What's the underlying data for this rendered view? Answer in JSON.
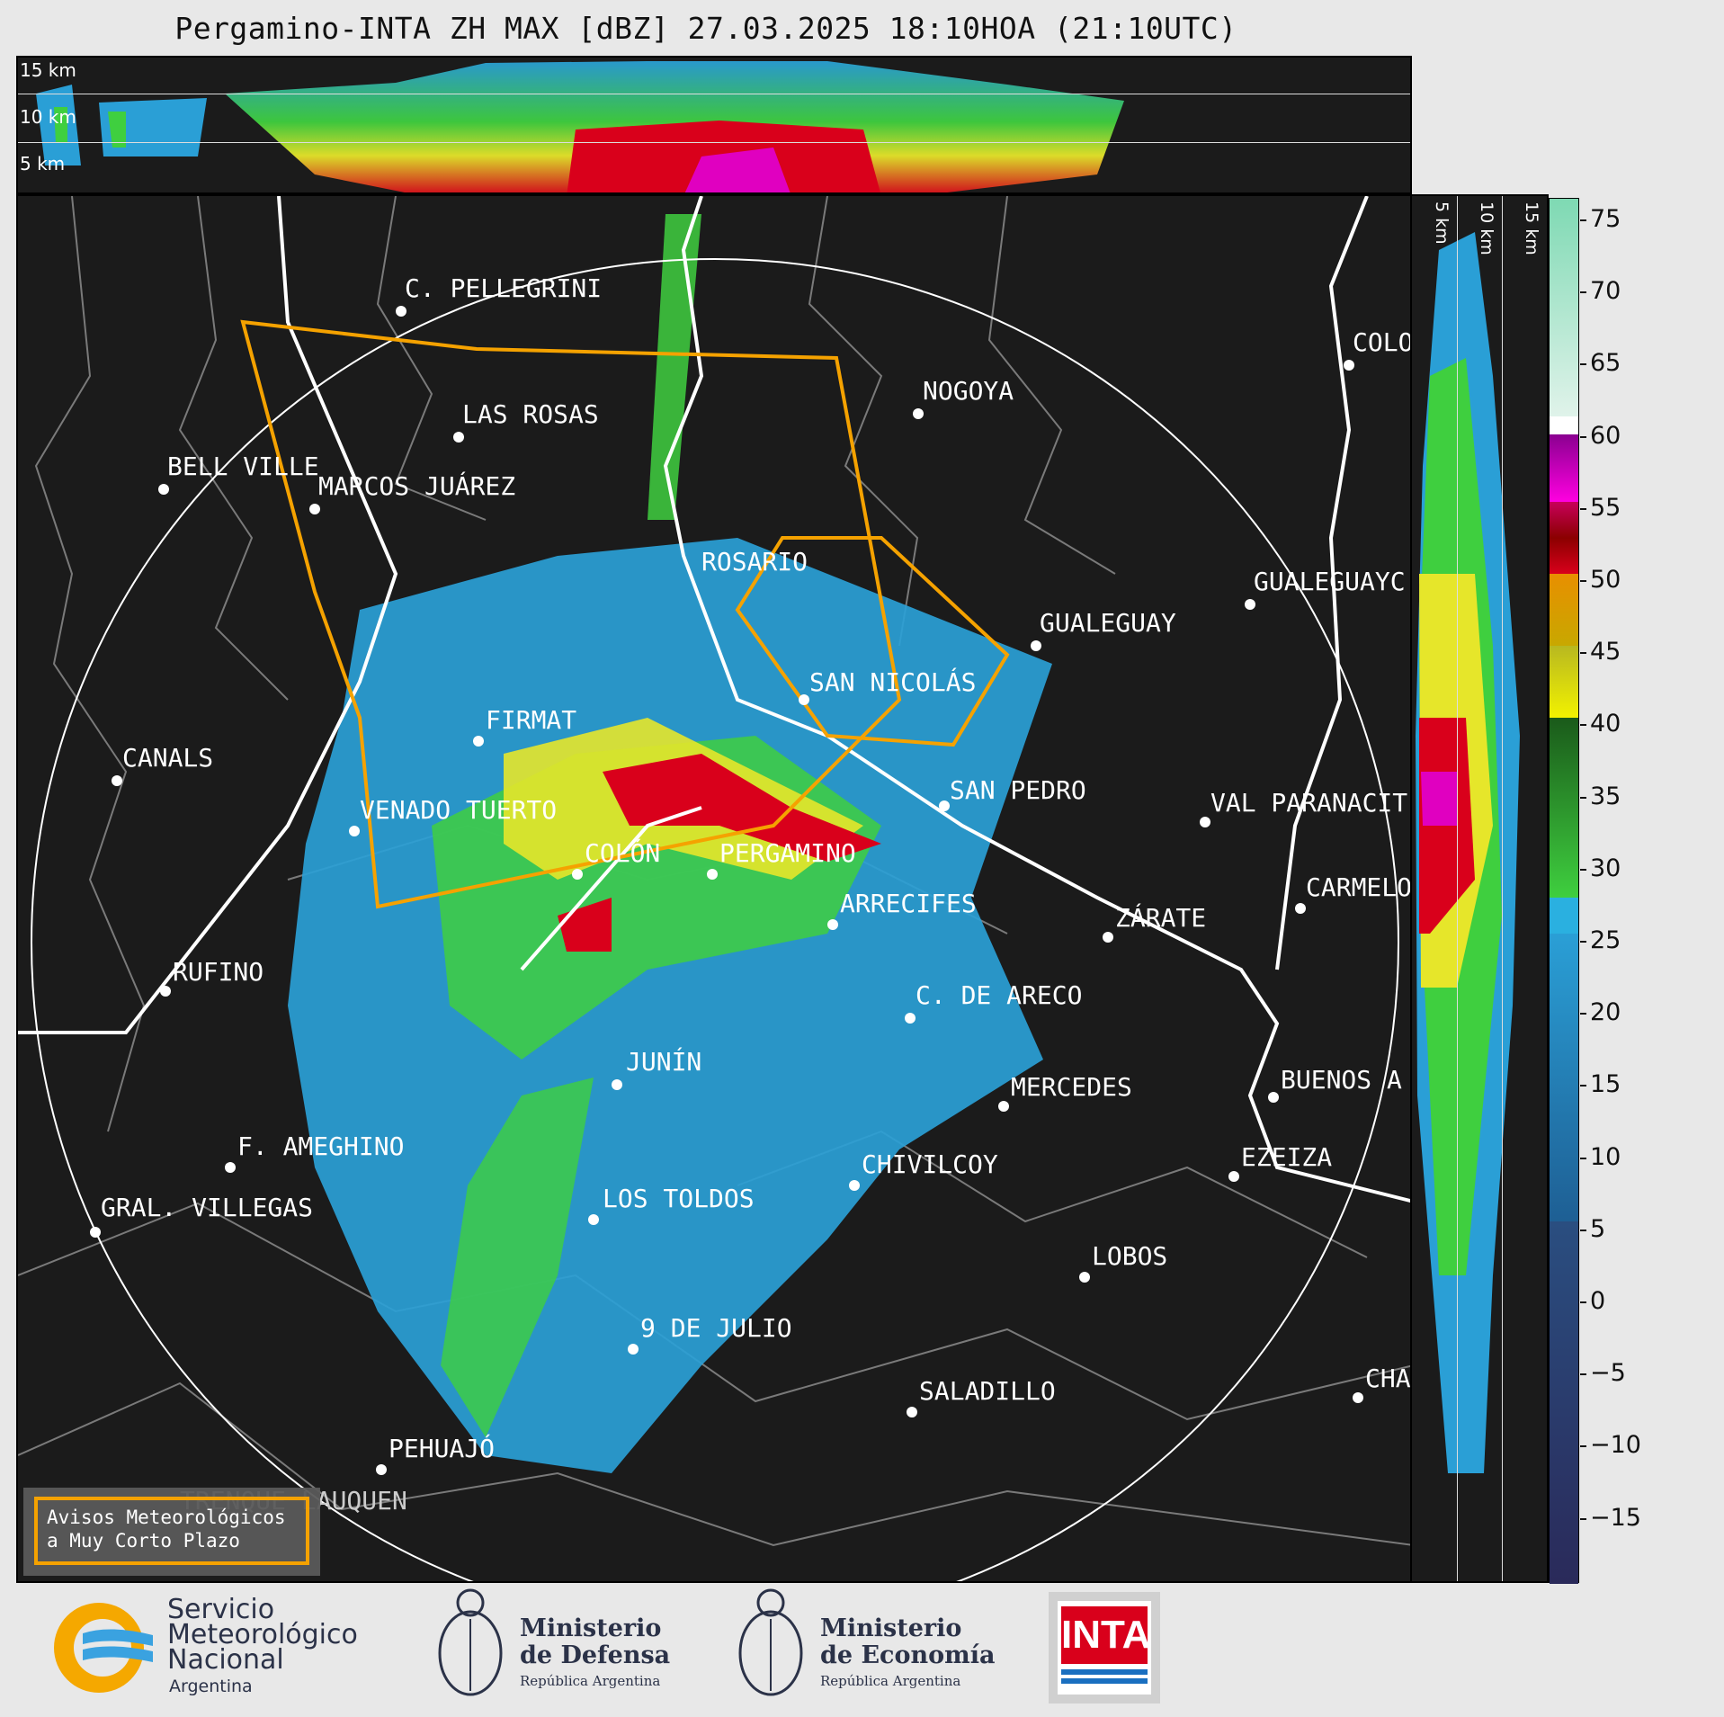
{
  "title": "Pergamino-INTA ZH MAX [dBZ] 27.03.2025 18:10HOA (21:10UTC)",
  "top_section": {
    "labels": [
      "15 km",
      "10 km",
      "5 km"
    ]
  },
  "side_section": {
    "labels": [
      "5 km",
      "10 km",
      "15 km"
    ]
  },
  "colorbar": {
    "ticks": [
      "75",
      "70",
      "65",
      "60",
      "55",
      "50",
      "45",
      "40",
      "35",
      "30",
      "25",
      "20",
      "15",
      "10",
      "5",
      "0",
      "−5",
      "−10",
      "−15"
    ]
  },
  "cities": [
    "C. PELLEGRINI",
    "NOGOYA",
    "LAS ROSAS",
    "BELL VILLE",
    "MARCOS JUÁREZ",
    "COLO",
    "ROSARIO",
    "GUALEGUAYC",
    "GUALEGUAY",
    "SAN NICOLÁS",
    "FIRMAT",
    "CANALS",
    "SAN PEDRO",
    "VENADO TUERTO",
    "VAL PARANACIT",
    "COLÓN",
    "PERGAMINO",
    "CARMELO",
    "ARRECIFES",
    "ZÁRATE",
    "RUFINO",
    "C. DE ARECO",
    "JUNÍN",
    "MERCEDES",
    "BUENOS A",
    "F. AMEGHINO",
    "EZEIZA",
    "CHIVILCOY",
    "GRAL. VILLEGAS",
    "LOS TOLDOS",
    "LOBOS",
    "9 DE JULIO",
    "CHA",
    "SALADILLO",
    "PEHUAJÓ",
    "TRENQUE LAUQUEN"
  ],
  "warning_box": {
    "line1": "Avisos Meteorológicos",
    "line2": "a Muy Corto Plazo"
  },
  "logos": {
    "smn": {
      "line1": "Servicio",
      "line2": "Meteorológico",
      "line3": "Nacional",
      "line4": "Argentina"
    },
    "defensa": {
      "line1": "Ministerio",
      "line2": "de Defensa",
      "line3": "República Argentina"
    },
    "economia": {
      "line1": "Ministerio",
      "line2": "de Economía",
      "line3": "República Argentina"
    },
    "inta": {
      "text": "INTA"
    }
  },
  "colors": {
    "background": "#1b1b1b",
    "warning_polygon": "#f5a200",
    "range_ring": "#ffffff",
    "radar_light": "#2a9fd6",
    "radar_green": "#3fcf3f",
    "radar_yellow": "#e6e62a",
    "radar_red": "#d9001b"
  }
}
